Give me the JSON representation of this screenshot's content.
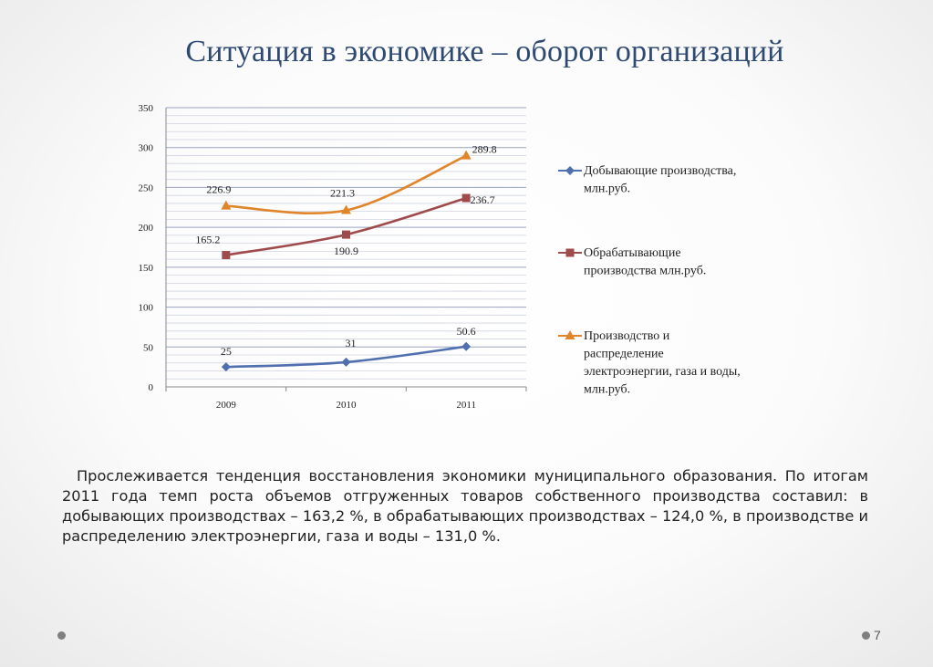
{
  "slide": {
    "title": "Ситуация в экономике – оборот организаций",
    "body": "Прослеживается тенденция восстановления экономики муниципального образования. По итогам 2011 года темп роста объемов отгруженных товаров собственного производства составил: в добывающих производствах – 163,2 %, в обрабатывающих производствах – 124,0 %, в производстве и распределению электроэнергии, газа и воды – 131,0 %.",
    "page_number": "7"
  },
  "chart_data": {
    "type": "line",
    "categories": [
      "2009",
      "2010",
      "2011"
    ],
    "ylim": [
      0,
      350
    ],
    "yticks": [
      0,
      50,
      100,
      150,
      200,
      250,
      300,
      350
    ],
    "grid": true,
    "legend_position": "right",
    "series": [
      {
        "name": "Добывающие производства, млн.руб.",
        "legend_lines": [
          "Добывающие производства,",
          "млн.руб."
        ],
        "values": [
          25,
          31,
          50.6
        ],
        "labels": [
          "25",
          "31",
          "50.6"
        ],
        "color": "#4f6fae",
        "marker": "diamond"
      },
      {
        "name": "Обрабатывающие производства млн.руб.",
        "legend_lines": [
          "Обрабатывающие",
          "производства   млн.руб."
        ],
        "values": [
          165.2,
          190.9,
          236.7
        ],
        "labels": [
          "165.2",
          "190.9",
          "236.7"
        ],
        "color": "#a04b4b",
        "marker": "square"
      },
      {
        "name": "Производство и распределение электроэнергии, газа и воды, млн.руб.",
        "legend_lines": [
          "Производство и",
          "распределение",
          "электроэнергии, газа и воды,",
          "млн.руб."
        ],
        "values": [
          226.9,
          221.3,
          289.8
        ],
        "labels": [
          "226.9",
          "221.3",
          "289.8"
        ],
        "color": "#e0852a",
        "marker": "triangle"
      }
    ]
  }
}
